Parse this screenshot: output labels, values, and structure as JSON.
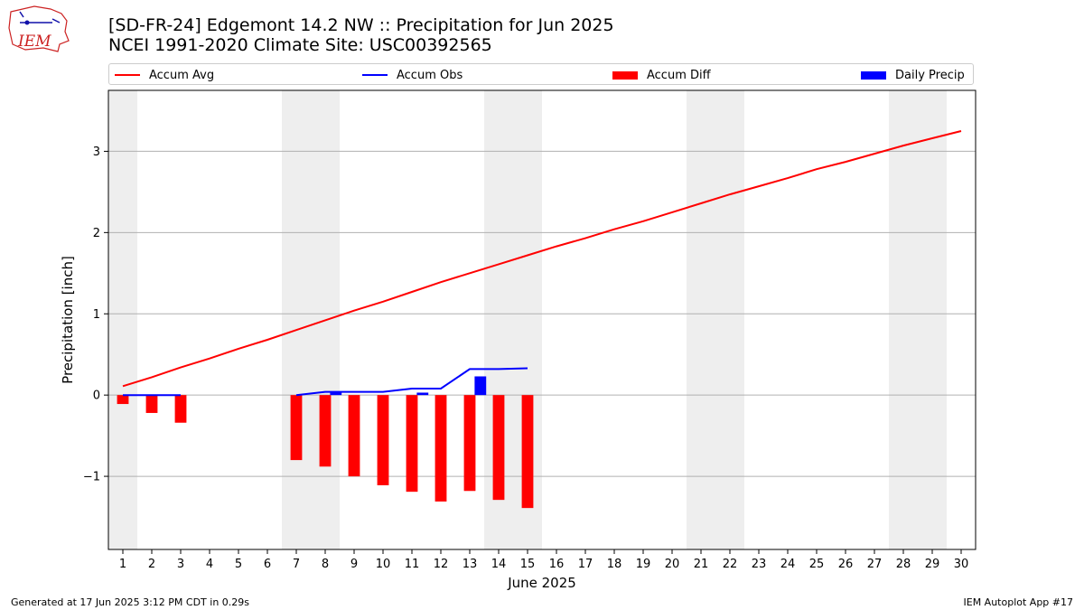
{
  "title_line1": "[SD-FR-24] Edgemont 14.2 NW :: Precipitation for Jun 2025",
  "title_line2": "NCEI 1991-2020 Climate Site: USC00392565",
  "logo_text": "IEM",
  "footer_left": "Generated at 17 Jun 2025 3:12 PM CDT in 0.29s",
  "footer_right": "IEM Autoplot App #17",
  "colors": {
    "avg": "#ff0000",
    "obs": "#0000ff",
    "diff": "#ff0000",
    "daily": "#0000ff",
    "weekend": "#eeeeee",
    "grid": "#b0b0b0"
  },
  "chart_data": {
    "type": "bar",
    "xlabel": "June 2025",
    "ylabel": "Precipitation [inch]",
    "x": [
      1,
      2,
      3,
      4,
      5,
      6,
      7,
      8,
      9,
      10,
      11,
      12,
      13,
      14,
      15,
      16,
      17,
      18,
      19,
      20,
      21,
      22,
      23,
      24,
      25,
      26,
      27,
      28,
      29,
      30
    ],
    "xlim": [
      0.5,
      30.5
    ],
    "ylim": [
      -1.9,
      3.75
    ],
    "yticks": [
      -1,
      0,
      1,
      2,
      3
    ],
    "ytick_labels": [
      "−1",
      "0",
      "1",
      "2",
      "3"
    ],
    "grid": "y",
    "legend": "top",
    "shaded_days": [
      1,
      7,
      8,
      14,
      15,
      21,
      22,
      28,
      29
    ],
    "series": [
      {
        "name": "Accum Avg",
        "kind": "line",
        "x": [
          1,
          2,
          3,
          4,
          5,
          6,
          7,
          8,
          9,
          10,
          11,
          12,
          13,
          14,
          15,
          16,
          17,
          18,
          19,
          20,
          21,
          22,
          23,
          24,
          25,
          26,
          27,
          28,
          29,
          30
        ],
        "values": [
          0.11,
          0.22,
          0.34,
          0.45,
          0.57,
          0.68,
          0.8,
          0.92,
          1.04,
          1.15,
          1.27,
          1.39,
          1.5,
          1.61,
          1.72,
          1.83,
          1.93,
          2.04,
          2.14,
          2.25,
          2.36,
          2.47,
          2.57,
          2.67,
          2.78,
          2.87,
          2.97,
          3.07,
          3.16,
          3.25
        ]
      },
      {
        "name": "Accum Obs",
        "kind": "line",
        "x": [
          1,
          2,
          3,
          null,
          7,
          8,
          9,
          10,
          11,
          12,
          13,
          14,
          15
        ],
        "values": [
          0,
          0,
          0,
          null,
          0,
          0.04,
          0.04,
          0.04,
          0.08,
          0.08,
          0.32,
          0.32,
          0.33
        ]
      },
      {
        "name": "Accum Diff",
        "kind": "bar",
        "x": [
          1,
          2,
          3,
          7,
          8,
          9,
          10,
          11,
          12,
          13,
          14,
          15
        ],
        "values": [
          -0.11,
          -0.22,
          -0.34,
          -0.8,
          -0.88,
          -1.0,
          -1.11,
          -1.19,
          -1.31,
          -1.18,
          -1.29,
          -1.39
        ]
      },
      {
        "name": "Daily Precip",
        "kind": "bar",
        "x": [
          8,
          11,
          13
        ],
        "values": [
          0.04,
          0.03,
          0.23
        ]
      }
    ]
  }
}
